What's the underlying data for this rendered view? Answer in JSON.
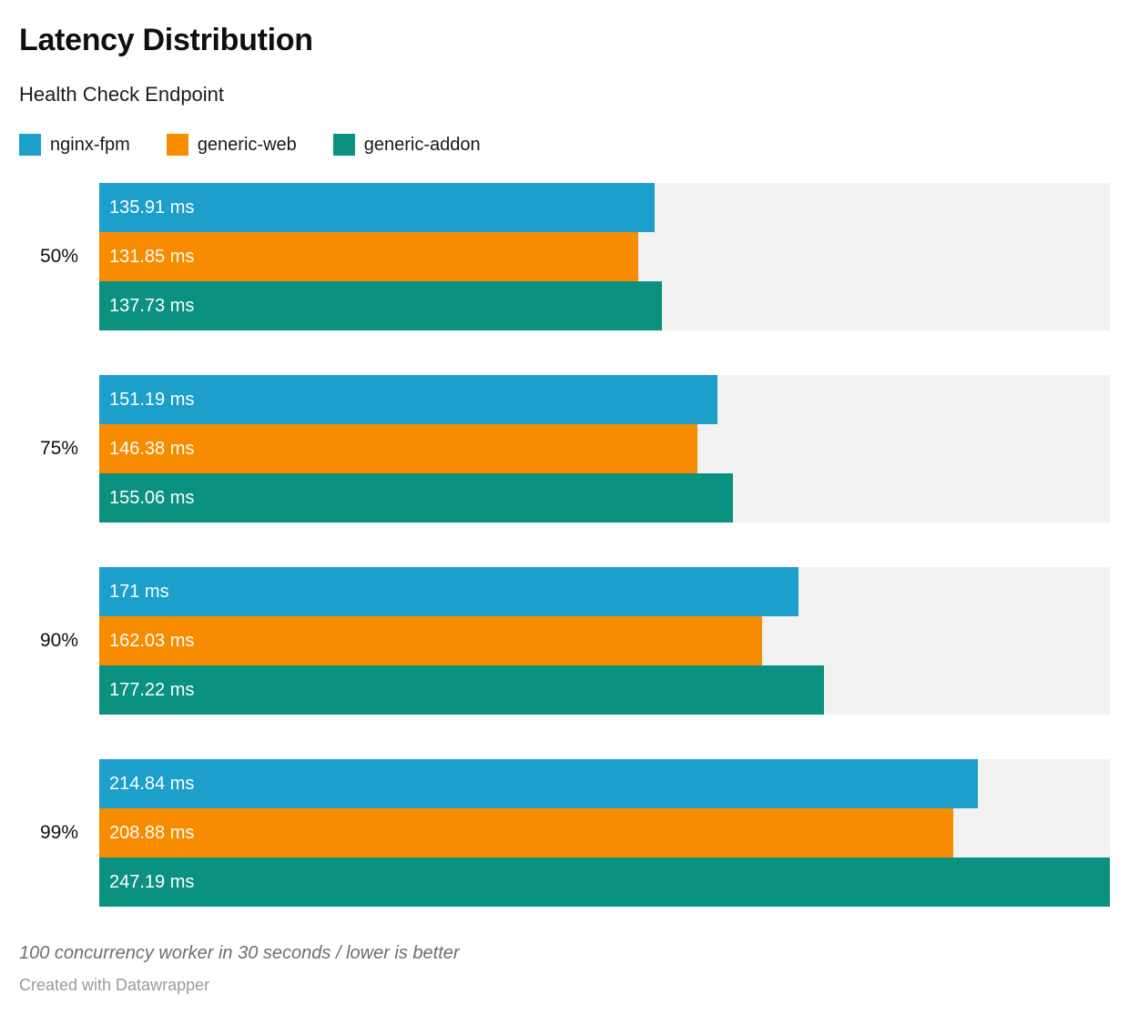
{
  "header": {
    "title": "Latency Distribution",
    "subtitle": "Health Check Endpoint"
  },
  "legend": [
    {
      "label": "nginx-fpm",
      "color": "#1C9FCB"
    },
    {
      "label": "generic-web",
      "color": "#F88C00"
    },
    {
      "label": "generic-addon",
      "color": "#0B9180"
    }
  ],
  "chart_data": {
    "type": "bar",
    "orientation": "horizontal",
    "title": "Latency Distribution",
    "subtitle": "Health Check Endpoint",
    "categories": [
      "50%",
      "75%",
      "90%",
      "99%"
    ],
    "series": [
      {
        "name": "nginx-fpm",
        "color": "#1C9FCB",
        "values": [
          135.91,
          151.19,
          171,
          214.84
        ],
        "labels": [
          "135.91 ms",
          "151.19 ms",
          "171 ms",
          "214.84 ms"
        ]
      },
      {
        "name": "generic-web",
        "color": "#F88C00",
        "values": [
          131.85,
          146.38,
          162.03,
          208.88
        ],
        "labels": [
          "131.85 ms",
          "146.38 ms",
          "162.03 ms",
          "208.88 ms"
        ]
      },
      {
        "name": "generic-addon",
        "color": "#0B9180",
        "values": [
          137.73,
          155.06,
          177.22,
          247.19
        ],
        "labels": [
          "137.73 ms",
          "155.06 ms",
          "177.22 ms",
          "247.19 ms"
        ]
      }
    ],
    "value_suffix": " ms",
    "xlim": [
      0,
      247.19
    ],
    "grid": false,
    "legend_position": "top",
    "track_color": "#f2f2f2"
  },
  "footer": {
    "note": "100 concurrency worker in 30 seconds / lower is better",
    "byline": "Created with Datawrapper"
  }
}
